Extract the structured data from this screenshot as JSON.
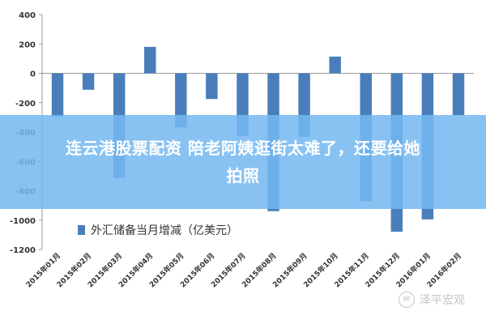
{
  "chart_data": {
    "type": "bar",
    "title": "",
    "xlabel": "",
    "ylabel": "",
    "ylim": [
      -1200,
      400
    ],
    "yticks": [
      400,
      200,
      0,
      -200,
      -400,
      -600,
      -800,
      -1000,
      -1200
    ],
    "ytick_labels": [
      "400",
      "200",
      "0",
      "-200",
      "-400",
      "-600",
      "-800",
      "-1000",
      "-1200"
    ],
    "categories": [
      "2015年01月",
      "2015年02月",
      "2015年03月",
      "2015年04月",
      "2015年05月",
      "2015年06月",
      "2015年07月",
      "2015年08月",
      "2015年09月",
      "2015年10月",
      "2015年11月",
      "2015年12月",
      "2016年01月",
      "2016年02月"
    ],
    "series": [
      {
        "name": "外汇储备当月增减（亿美元）",
        "values": [
          -295,
          -112,
          -713,
          180,
          -368,
          -175,
          -426,
          -939,
          -432,
          114,
          -872,
          -1079,
          -995,
          -286
        ],
        "color": "#4a7ebb"
      }
    ],
    "legend_position": "bottom-left",
    "grid": false
  },
  "overlay": {
    "line1": "连云港股票配资 陪老阿姨逛街太难了，还要给她",
    "line2": "拍照"
  },
  "watermark": {
    "text": "泽平宏观",
    "icon": "wechat-icon"
  }
}
